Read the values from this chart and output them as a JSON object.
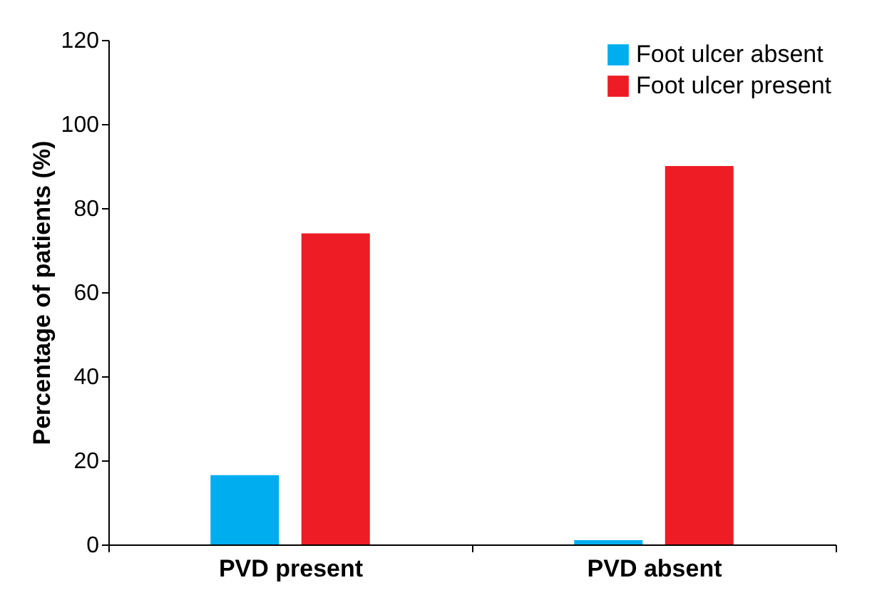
{
  "chart_data": {
    "type": "bar",
    "ylabel": "Percentage of patients (%)",
    "categories": [
      "PVD present",
      "PVD absent"
    ],
    "series": [
      {
        "name": "Foot ulcer absent",
        "color": "#00aeef",
        "values": [
          16.5,
          1
        ]
      },
      {
        "name": "Foot ulcer present",
        "color": "#ee1c25",
        "values": [
          74,
          90
        ]
      }
    ],
    "ylim": [
      0,
      120
    ],
    "yticks": [
      0,
      20,
      40,
      60,
      80,
      100,
      120
    ],
    "grid": false,
    "legend": "top right"
  }
}
